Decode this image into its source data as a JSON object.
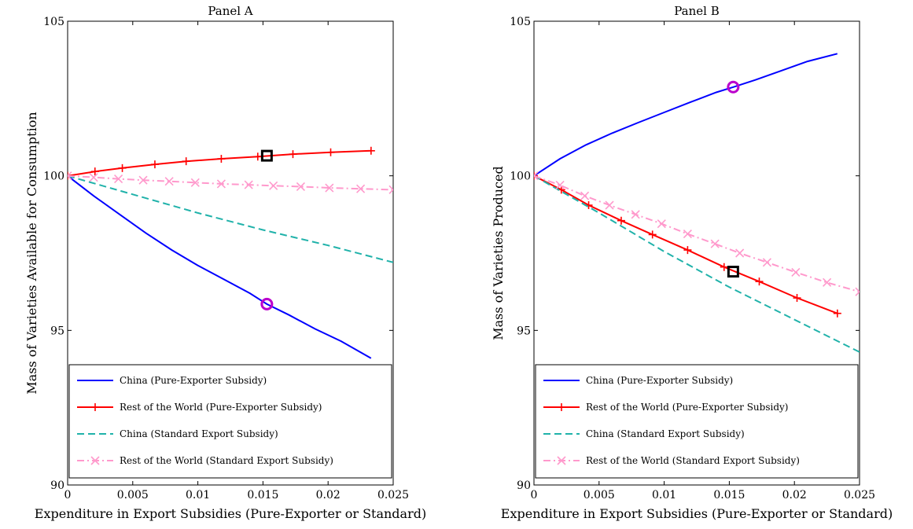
{
  "chart_data": [
    {
      "type": "line",
      "title": "Panel A",
      "xlabel": "Expenditure in Export Subsidies (Pure-Exporter or Standard)",
      "ylabel": "Mass of Varieties Available for Consumption",
      "xlim": [
        0,
        0.025
      ],
      "ylim": [
        90,
        105
      ],
      "xticks": [
        "0",
        "0.005",
        "0.01",
        "0.015",
        "0.02",
        "0.025"
      ],
      "yticks": [
        "90",
        "95",
        "100",
        "105"
      ],
      "legend_position": "bottom",
      "series": [
        {
          "name": "China (Pure-Exporter Subsidy)",
          "color": "#0000ff",
          "dash": "solid",
          "marker": "none",
          "x": [
            0,
            0.002,
            0.004,
            0.006,
            0.008,
            0.01,
            0.012,
            0.014,
            0.0153,
            0.017,
            0.019,
            0.021,
            0.0233
          ],
          "y": [
            100,
            99.35,
            98.75,
            98.15,
            97.6,
            97.1,
            96.65,
            96.2,
            95.85,
            95.5,
            95.05,
            94.65,
            94.1
          ]
        },
        {
          "name": "Rest of the World (Pure-Exporter Subsidy)",
          "color": "#ff0000",
          "dash": "solid",
          "marker": "plus",
          "x": [
            0,
            0.0021,
            0.0042,
            0.0067,
            0.0091,
            0.0118,
            0.0146,
            0.0173,
            0.0202,
            0.0233
          ],
          "y": [
            100,
            100.14,
            100.25,
            100.37,
            100.47,
            100.55,
            100.62,
            100.7,
            100.76,
            100.81
          ]
        },
        {
          "name": "China (Standard Export Subsidy)",
          "color": "#20b2aa",
          "dash": "dashed",
          "marker": "none",
          "x": [
            0,
            0.005,
            0.01,
            0.015,
            0.02,
            0.025
          ],
          "y": [
            100,
            99.4,
            98.8,
            98.25,
            97.75,
            97.2
          ]
        },
        {
          "name": "Rest of the World (Standard Export Subsidy)",
          "color": "#ff99cc",
          "dash": "dashdot",
          "marker": "x",
          "x": [
            0,
            0.002,
            0.0039,
            0.0058,
            0.0078,
            0.0098,
            0.0118,
            0.0139,
            0.0158,
            0.0179,
            0.0201,
            0.0225,
            0.025
          ],
          "y": [
            100,
            99.95,
            99.9,
            99.86,
            99.82,
            99.78,
            99.74,
            99.71,
            99.68,
            99.65,
            99.61,
            99.58,
            99.55
          ]
        }
      ],
      "highlights": [
        {
          "series": "China (Pure-Exporter Subsidy)",
          "x": 0.0153,
          "y": 95.85,
          "shape": "circle",
          "color": "#bb00cc"
        },
        {
          "series": "Rest of the World (Pure-Exporter Subsidy)",
          "x": 0.0153,
          "y": 100.65,
          "shape": "square",
          "color": "#000000"
        }
      ]
    },
    {
      "type": "line",
      "title": "Panel B",
      "xlabel": "Expenditure in Export Subsidies (Pure-Exporter or Standard)",
      "ylabel": "Mass of Varieties Produced",
      "xlim": [
        0,
        0.025
      ],
      "ylim": [
        90,
        105
      ],
      "xticks": [
        "0",
        "0.005",
        "0.01",
        "0.015",
        "0.02",
        "0.025"
      ],
      "yticks": [
        "90",
        "95",
        "100",
        "105"
      ],
      "legend_position": "bottom",
      "series": [
        {
          "name": "China (Pure-Exporter Subsidy)",
          "color": "#0000ff",
          "dash": "solid",
          "marker": "none",
          "x": [
            0,
            0.002,
            0.004,
            0.006,
            0.008,
            0.01,
            0.012,
            0.014,
            0.0153,
            0.017,
            0.019,
            0.021,
            0.0233
          ],
          "y": [
            100,
            100.55,
            101.0,
            101.38,
            101.72,
            102.05,
            102.38,
            102.7,
            102.87,
            103.1,
            103.4,
            103.7,
            103.95
          ]
        },
        {
          "name": "Rest of the World (Pure-Exporter Subsidy)",
          "color": "#ff0000",
          "dash": "solid",
          "marker": "plus",
          "x": [
            0,
            0.0021,
            0.0042,
            0.0067,
            0.0091,
            0.0118,
            0.0146,
            0.0173,
            0.0202,
            0.0233
          ],
          "y": [
            100,
            99.55,
            99.05,
            98.55,
            98.1,
            97.6,
            97.05,
            96.58,
            96.05,
            95.55
          ]
        },
        {
          "name": "China (Standard Export Subsidy)",
          "color": "#20b2aa",
          "dash": "dashed",
          "marker": "none",
          "x": [
            0,
            0.005,
            0.01,
            0.015,
            0.02,
            0.025
          ],
          "y": [
            100,
            98.8,
            97.55,
            96.4,
            95.35,
            94.3
          ]
        },
        {
          "name": "Rest of the World (Standard Export Subsidy)",
          "color": "#ff99cc",
          "dash": "dashdot",
          "marker": "x",
          "x": [
            0,
            0.002,
            0.0039,
            0.0058,
            0.0078,
            0.0098,
            0.0118,
            0.0139,
            0.0158,
            0.0179,
            0.0201,
            0.0225,
            0.025
          ],
          "y": [
            100,
            99.7,
            99.35,
            99.05,
            98.75,
            98.45,
            98.12,
            97.8,
            97.5,
            97.2,
            96.88,
            96.55,
            96.25
          ]
        }
      ],
      "highlights": [
        {
          "series": "China (Pure-Exporter Subsidy)",
          "x": 0.0153,
          "y": 102.87,
          "shape": "circle",
          "color": "#bb00cc"
        },
        {
          "series": "Rest of the World (Pure-Exporter Subsidy)",
          "x": 0.0153,
          "y": 96.9,
          "shape": "square",
          "color": "#000000"
        }
      ]
    }
  ]
}
